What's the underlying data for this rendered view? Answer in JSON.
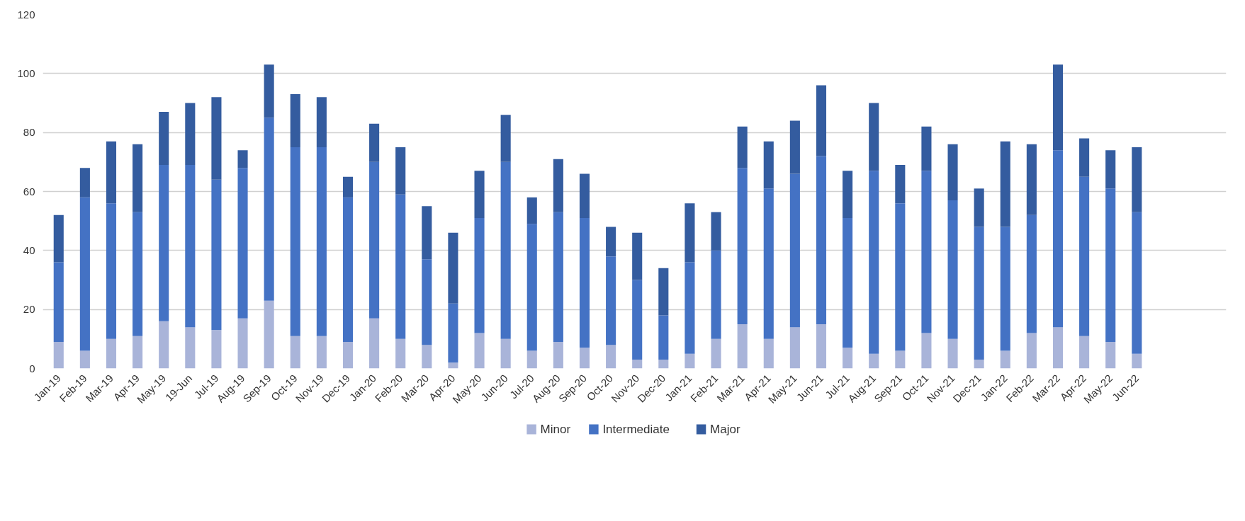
{
  "chart_data": {
    "type": "bar",
    "stacked": true,
    "categories": [
      "Jan-19",
      "Feb-19",
      "Mar-19",
      "Apr-19",
      "May-19",
      "19-Jun",
      "Jul-19",
      "Aug-19",
      "Sep-19",
      "Oct-19",
      "Nov-19",
      "Dec-19",
      "Jan-20",
      "Feb-20",
      "Mar-20",
      "Apr-20",
      "May-20",
      "Jun-20",
      "Jul-20",
      "Aug-20",
      "Sep-20",
      "Oct-20",
      "Nov-20",
      "Dec-20",
      "Jan-21",
      "Feb-21",
      "Mar-21",
      "Apr-21",
      "May-21",
      "Jun-21",
      "Jul-21",
      "Aug-21",
      "Sep-21",
      "Oct-21",
      "Nov-21",
      "Dec-21",
      "Jan-22",
      "Feb-22",
      "Mar-22",
      "Apr-22",
      "May-22",
      "Jun-22"
    ],
    "series": [
      {
        "name": "Minor",
        "color": "#a9b4d9",
        "values": [
          9,
          6,
          10,
          11,
          16,
          14,
          13,
          17,
          23,
          11,
          11,
          9,
          17,
          10,
          8,
          2,
          12,
          10,
          6,
          9,
          7,
          8,
          3,
          3,
          5,
          10,
          15,
          10,
          14,
          15,
          7,
          5,
          6,
          12,
          10,
          3,
          6,
          12,
          14,
          11,
          9,
          5
        ]
      },
      {
        "name": "Intermediate",
        "color": "#4472c4",
        "values": [
          27,
          52,
          46,
          42,
          53,
          55,
          51,
          51,
          62,
          64,
          64,
          49,
          53,
          49,
          29,
          20,
          39,
          60,
          43,
          44,
          44,
          30,
          27,
          15,
          31,
          30,
          53,
          51,
          52,
          57,
          44,
          62,
          50,
          55,
          47,
          45,
          42,
          40,
          60,
          54,
          52,
          48
        ]
      },
      {
        "name": "Major",
        "color": "#345c9f",
        "values": [
          16,
          10,
          21,
          23,
          18,
          21,
          28,
          6,
          18,
          18,
          17,
          7,
          13,
          16,
          18,
          24,
          16,
          16,
          9,
          18,
          15,
          10,
          16,
          16,
          20,
          13,
          14,
          16,
          18,
          24,
          16,
          23,
          13,
          15,
          19,
          13,
          29,
          24,
          29,
          13,
          13,
          22
        ]
      }
    ],
    "ylim": [
      0,
      120
    ],
    "yticks": [
      0,
      20,
      40,
      60,
      80,
      100,
      120
    ],
    "grid": "y",
    "legend": "bottom"
  }
}
